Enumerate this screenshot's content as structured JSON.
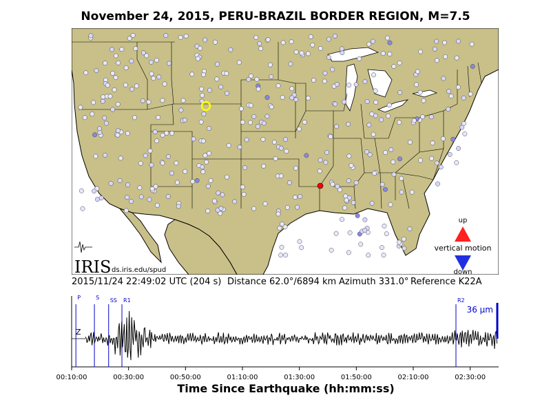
{
  "title": "November 24, 2015, PERU-BRAZIL BORDER REGION, M=7.5",
  "map": {
    "logo_text": "IRIS",
    "source_url": "ds.iris.edu/spud",
    "legend": {
      "up": "up",
      "label": "vertical motion",
      "down": "down"
    },
    "colors": {
      "land": "#c8c088",
      "water": "#ffffff",
      "station": "#ccccff",
      "reference": "#ffff00",
      "epicenter_marker": "#ff0000"
    }
  },
  "meta": {
    "timestamp": "2015/11/24 22:49:02 UTC (204 s)",
    "distance": "Distance  62.0°/6894 km",
    "azimuth": "Azimuth 331.0°",
    "reference": "Reference K22A"
  },
  "chart_data": {
    "type": "line",
    "title": "November 24, 2015, PERU-BRAZIL BORDER REGION, M=7.5",
    "xlabel": "Time Since Earthquake (hh:mm:ss)",
    "ylabel": "",
    "channel": "Z",
    "x_ticks": [
      "00:10:00",
      "00:30:00",
      "00:50:00",
      "01:10:00",
      "01:30:00",
      "01:50:00",
      "02:10:00",
      "02:30:00"
    ],
    "x_tick_seconds": [
      600,
      1800,
      3000,
      4200,
      5400,
      6600,
      7800,
      9000
    ],
    "xlim_seconds": [
      600,
      9600
    ],
    "scale_bar": "36 μm",
    "phases": [
      {
        "name": "P",
        "seconds": 690
      },
      {
        "name": "S",
        "seconds": 1080
      },
      {
        "name": "SS",
        "seconds": 1380
      },
      {
        "name": "R1",
        "seconds": 1660
      },
      {
        "name": "R2",
        "seconds": 8700
      }
    ]
  }
}
